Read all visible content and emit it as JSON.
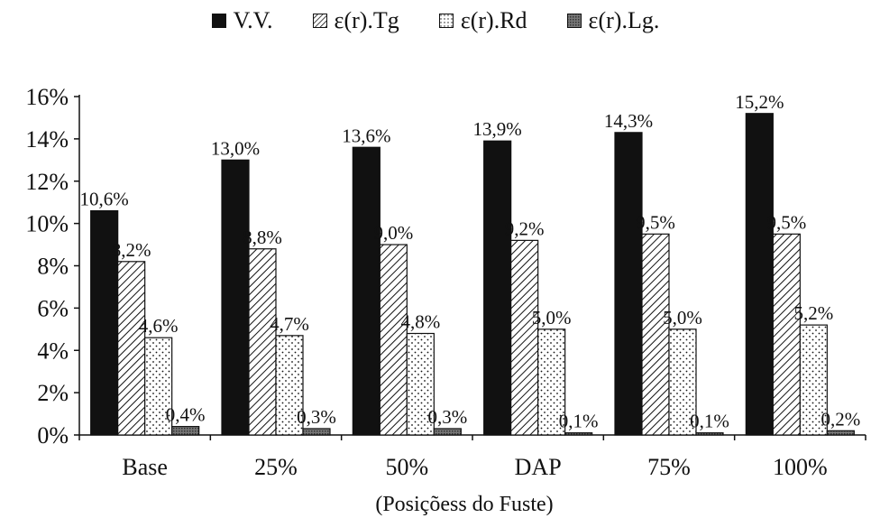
{
  "chart_data": {
    "type": "bar",
    "title": "",
    "xlabel": "(Posiçõess do Fuste)",
    "ylabel": "",
    "ylim": [
      0,
      16
    ],
    "y_tick_step": 2,
    "y_unit": "%",
    "categories": [
      "Base",
      "25%",
      "50%",
      "DAP",
      "75%",
      "100%"
    ],
    "legend_position": "top-center",
    "series": [
      {
        "name": "V.V.",
        "pattern": "solid",
        "color": "#111111",
        "values": [
          10.6,
          13.0,
          13.6,
          13.9,
          14.3,
          15.2
        ],
        "labels": [
          "10,6%",
          "13,0%",
          "13,6%",
          "13,9%",
          "14,3%",
          "15,2%"
        ]
      },
      {
        "name": "ε(r).Tg",
        "pattern": "diagonal-hatch",
        "color": "#111111",
        "values": [
          8.2,
          8.8,
          9.0,
          9.2,
          9.5,
          9.5
        ],
        "labels": [
          "8,2%",
          "8,8%",
          "9,0%",
          "9,2%",
          "9,5%",
          "9,5%"
        ]
      },
      {
        "name": "ε(r).Rd",
        "pattern": "dots",
        "color": "#111111",
        "values": [
          4.6,
          4.7,
          4.8,
          5.0,
          5.0,
          5.2
        ],
        "labels": [
          "4,6%",
          "4,7%",
          "4,8%",
          "5,0%",
          "5,0%",
          "5,2%"
        ]
      },
      {
        "name": "ε(r).Lg.",
        "pattern": "crosshatch",
        "color": "#444444",
        "values": [
          0.4,
          0.3,
          0.3,
          0.1,
          0.1,
          0.2
        ],
        "labels": [
          "0,4%",
          "0,3%",
          "0,3%",
          "0,1%",
          "0,1%",
          "0,2%"
        ]
      }
    ]
  }
}
